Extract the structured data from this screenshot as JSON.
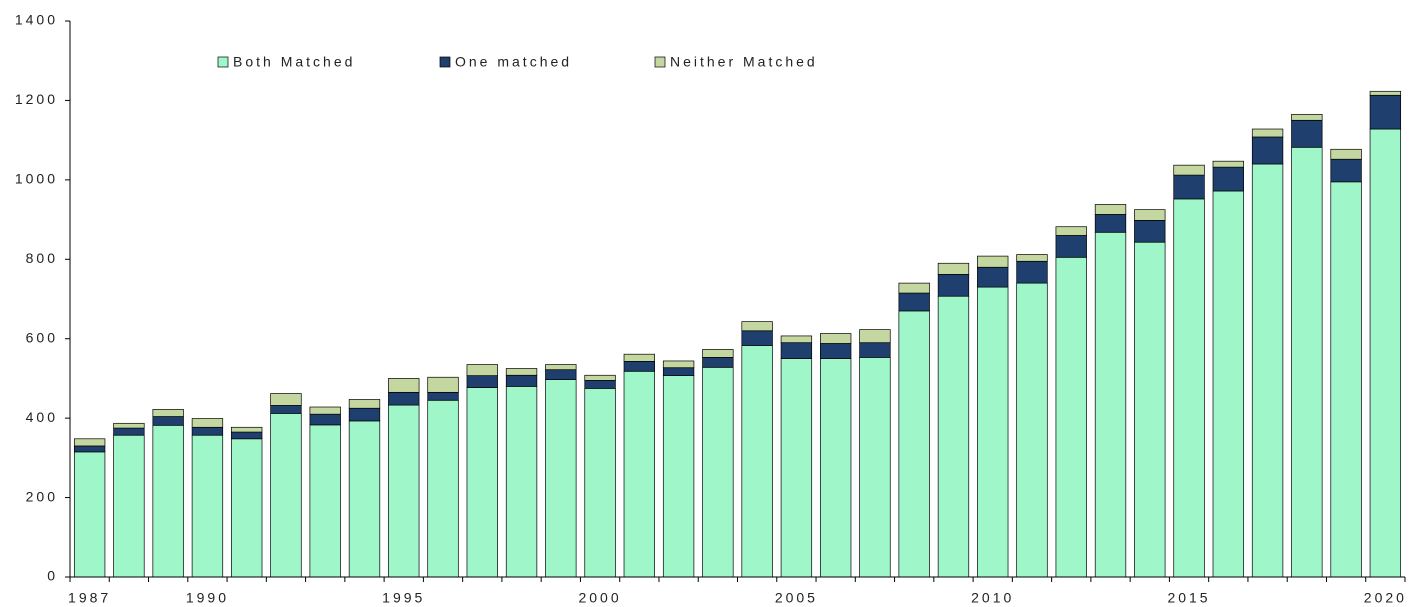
{
  "chart_data": {
    "type": "stacked_bar",
    "categories": [
      "1987",
      null,
      null,
      "1990",
      null,
      null,
      null,
      null,
      "1995",
      null,
      null,
      null,
      null,
      "2000",
      null,
      null,
      null,
      null,
      "2005",
      null,
      null,
      null,
      null,
      "2010",
      null,
      null,
      null,
      null,
      "2015",
      null,
      null,
      null,
      null,
      "2020"
    ],
    "series": [
      {
        "name": "Both Matched",
        "color": "#9ff7c9",
        "values": [
          315,
          357,
          382,
          357,
          348,
          412,
          383,
          393,
          433,
          445,
          477,
          480,
          497,
          475,
          518,
          507,
          528,
          583,
          550,
          550,
          553,
          670,
          707,
          730,
          740,
          805,
          868,
          843,
          952,
          972,
          1040,
          1082,
          995,
          1128
        ]
      },
      {
        "name": "One matched",
        "color": "#1f3f6e",
        "values": [
          15,
          18,
          22,
          20,
          17,
          20,
          27,
          32,
          32,
          20,
          30,
          28,
          25,
          20,
          25,
          20,
          25,
          37,
          40,
          38,
          37,
          45,
          55,
          50,
          55,
          55,
          45,
          55,
          60,
          60,
          68,
          68,
          57,
          85
        ]
      },
      {
        "name": "Neither Matched",
        "color": "#c4d7a0",
        "values": [
          18,
          12,
          18,
          22,
          12,
          30,
          18,
          22,
          35,
          38,
          28,
          17,
          13,
          13,
          18,
          17,
          20,
          23,
          17,
          25,
          33,
          25,
          28,
          28,
          17,
          22,
          25,
          27,
          25,
          15,
          20,
          15,
          25,
          10
        ]
      }
    ],
    "ylim": [
      0,
      1400
    ],
    "yticks": [
      0,
      200,
      400,
      600,
      800,
      1000,
      1200,
      1400
    ]
  }
}
